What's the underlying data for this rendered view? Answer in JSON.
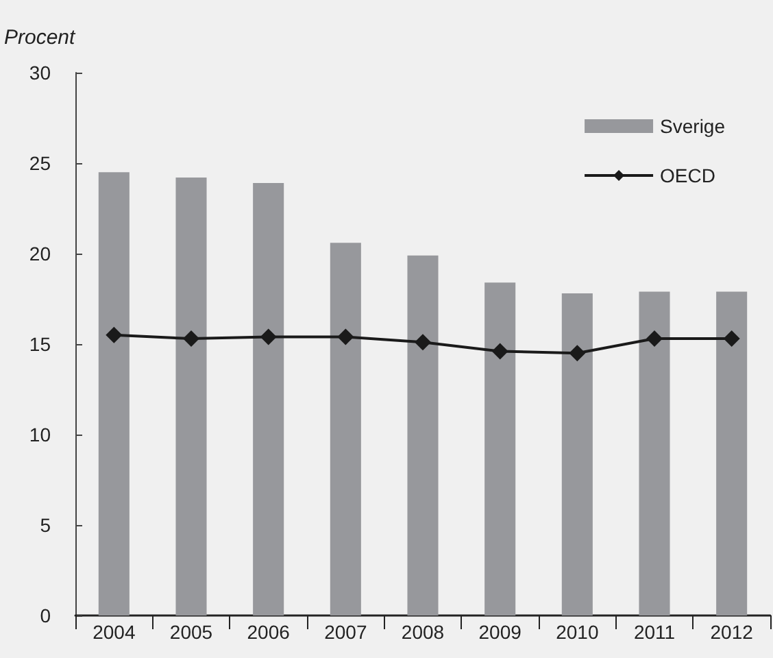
{
  "chart_data": {
    "type": "bar",
    "ylabel": "Procent",
    "categories": [
      "2004",
      "2005",
      "2006",
      "2007",
      "2008",
      "2009",
      "2010",
      "2011",
      "2012"
    ],
    "series": [
      {
        "name": "Sverige",
        "color": "#97989c",
        "values": [
          24.5,
          24.2,
          23.9,
          20.6,
          19.9,
          18.4,
          17.8,
          17.9,
          17.9
        ]
      },
      {
        "name": "OECD",
        "type": "line",
        "color": "#1a1a1a",
        "marker": "diamond",
        "values": [
          15.5,
          15.3,
          15.4,
          15.4,
          15.1,
          14.6,
          14.5,
          15.3,
          15.3
        ]
      }
    ],
    "ylim": [
      0,
      30
    ],
    "yticks": [
      0,
      5,
      10,
      15,
      20,
      25,
      30
    ],
    "grid": false,
    "legend": "top right"
  }
}
